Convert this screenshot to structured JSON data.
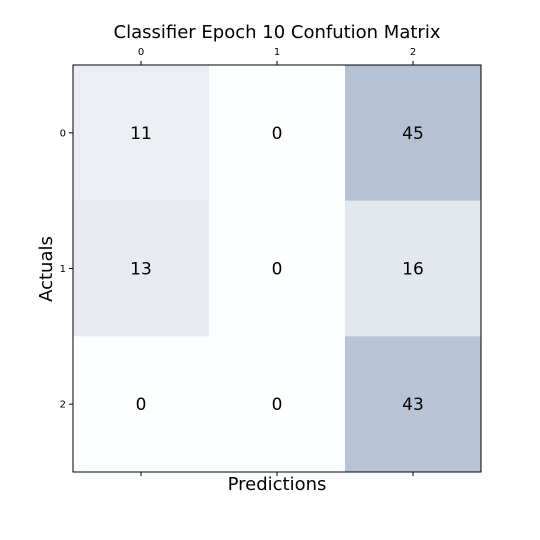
{
  "chart_data": {
    "type": "heatmap",
    "title": "Classifier Epoch 10 Confution Matrix",
    "xlabel": "Predictions",
    "ylabel": "Actuals",
    "x_categories": [
      "0",
      "1",
      "2"
    ],
    "y_categories": [
      "0",
      "1",
      "2"
    ],
    "values": [
      [
        11,
        0,
        45
      ],
      [
        13,
        0,
        16
      ],
      [
        0,
        0,
        43
      ]
    ],
    "colormap": "Blues",
    "color_alpha": 0.3,
    "x_ticks_position": "top",
    "grid": false
  }
}
